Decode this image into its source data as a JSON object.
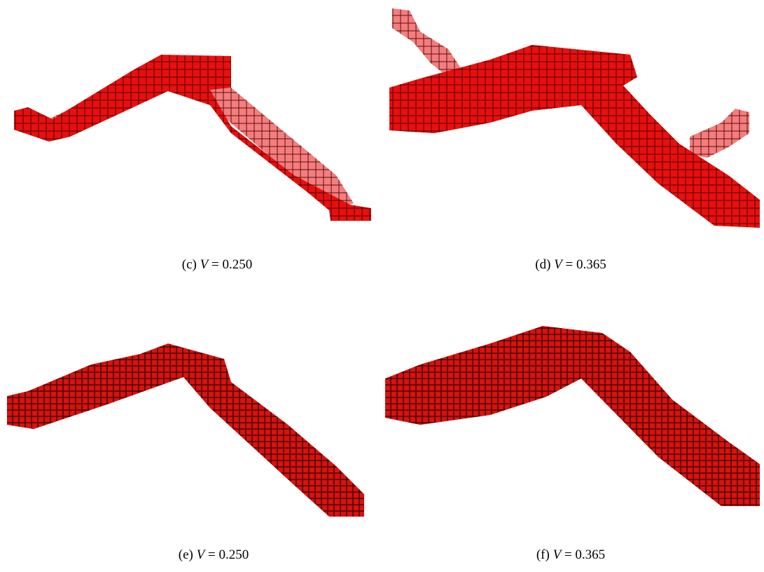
{
  "panels": [
    {
      "label": "(c)",
      "variable": "V",
      "value": "= 0.250"
    },
    {
      "label": "(d)",
      "variable": "V",
      "value": "= 0.365"
    },
    {
      "label": "(e)",
      "variable": "V",
      "value": "= 0.250"
    },
    {
      "label": "(f)",
      "variable": "V",
      "value": "= 0.365"
    }
  ]
}
